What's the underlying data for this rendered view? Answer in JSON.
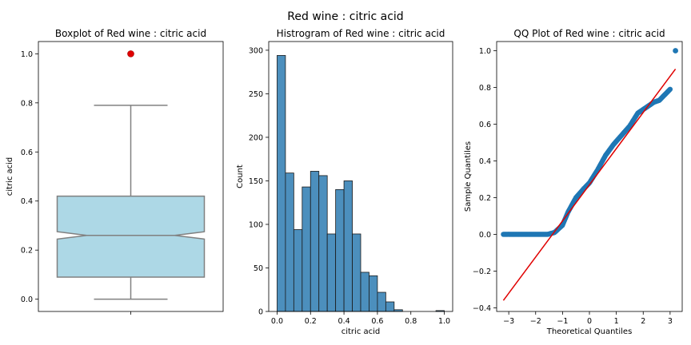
{
  "figure": {
    "suptitle": "Red wine : citric acid"
  },
  "chart_data": [
    {
      "type": "box",
      "title": "Boxplot of Red wine : citric acid",
      "xlabel": "",
      "ylabel": "citric acid",
      "ylim": [
        -0.05,
        1.05
      ],
      "yticks": [
        "0.0",
        "0.2",
        "0.4",
        "0.6",
        "0.8",
        "1.0"
      ],
      "notch": true,
      "box": {
        "min": 0.0,
        "q1": 0.09,
        "median": 0.26,
        "q3": 0.42,
        "max": 0.79,
        "notch_low": 0.245,
        "notch_high": 0.275
      },
      "outliers": [
        1.0
      ],
      "colors": {
        "box_fill": "#add8e6",
        "box_edge": "#808080",
        "outlier": "#e00000"
      }
    },
    {
      "type": "bar",
      "title": "Histrogram of Red wine : citric acid",
      "xlabel": "citric acid",
      "ylabel": "Count",
      "xlim": [
        -0.05,
        1.05
      ],
      "ylim": [
        0,
        310
      ],
      "xticks": [
        "0.0",
        "0.2",
        "0.4",
        "0.6",
        "0.8",
        "1.0"
      ],
      "yticks": [
        "0",
        "50",
        "100",
        "150",
        "200",
        "250",
        "300"
      ],
      "bin_edges": [
        0.0,
        0.05,
        0.1,
        0.15,
        0.2,
        0.25,
        0.3,
        0.35,
        0.4,
        0.45,
        0.5,
        0.55,
        0.6,
        0.65,
        0.7,
        0.75,
        0.8,
        0.85,
        0.9,
        0.95,
        1.0
      ],
      "counts": [
        294,
        159,
        94,
        143,
        161,
        156,
        89,
        140,
        150,
        89,
        45,
        41,
        22,
        11,
        2,
        0,
        0,
        0,
        0,
        1
      ],
      "colors": {
        "bar_fill": "#4c8fbd",
        "bar_edge": "#1a1a1a"
      }
    },
    {
      "type": "scatter",
      "title": "QQ Plot of Red wine : citric acid",
      "xlabel": "Theoretical Quantiles",
      "ylabel": "Sample Quantiles",
      "xlim": [
        -3.45,
        3.45
      ],
      "ylim": [
        -0.42,
        1.05
      ],
      "xticks": [
        "−3",
        "−2",
        "−1",
        "0",
        "1",
        "2",
        "3"
      ],
      "yticks": [
        "−0.4",
        "−0.2",
        "0.0",
        "0.2",
        "0.4",
        "0.6",
        "0.8",
        "1.0"
      ],
      "quantile_curve": [
        [
          -3.2,
          0.0
        ],
        [
          -1.55,
          0.0
        ],
        [
          -1.3,
          0.01
        ],
        [
          -1.0,
          0.05
        ],
        [
          -0.8,
          0.12
        ],
        [
          -0.5,
          0.2
        ],
        [
          -0.2,
          0.25
        ],
        [
          0.0,
          0.28
        ],
        [
          0.3,
          0.35
        ],
        [
          0.6,
          0.43
        ],
        [
          0.9,
          0.49
        ],
        [
          1.2,
          0.54
        ],
        [
          1.5,
          0.59
        ],
        [
          1.8,
          0.66
        ],
        [
          2.1,
          0.69
        ],
        [
          2.4,
          0.72
        ],
        [
          2.6,
          0.73
        ],
        [
          2.8,
          0.76
        ],
        [
          3.0,
          0.79
        ],
        [
          3.2,
          1.0
        ]
      ],
      "reference_line": [
        [
          -3.2,
          -0.36
        ],
        [
          3.2,
          0.9
        ]
      ],
      "colors": {
        "points": "#1f77b4",
        "line": "#e00000"
      }
    }
  ]
}
